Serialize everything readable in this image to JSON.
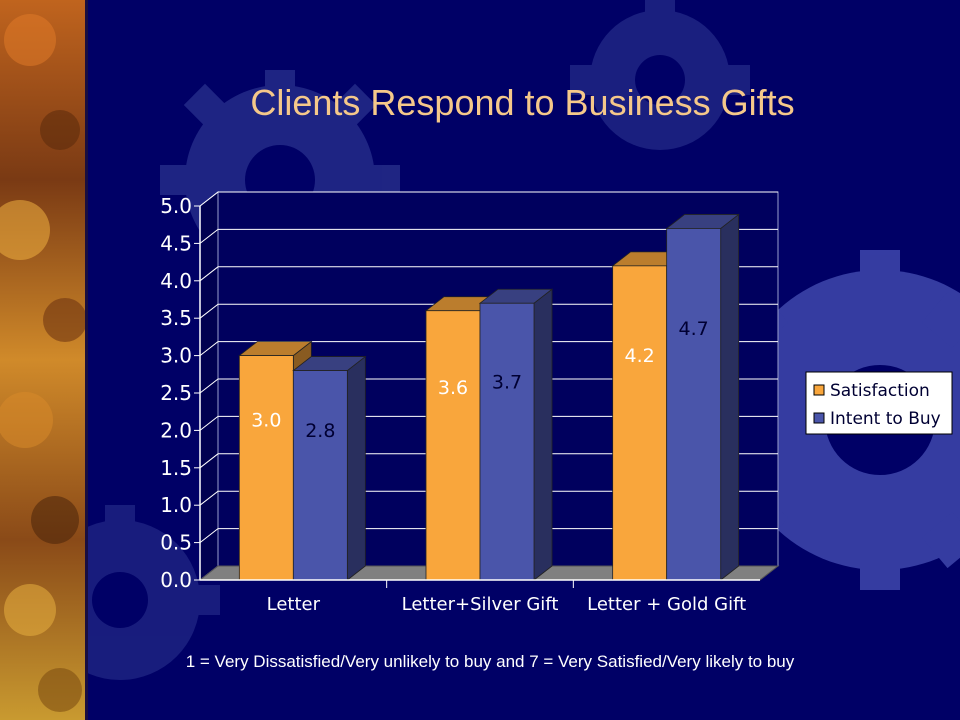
{
  "slide": {
    "title": "Clients Respond to Business Gifts",
    "footnote": "1 = Very Dissatisfied/Very unlikely to buy and 7 = Very Satisfied/Very likely to buy"
  },
  "chart_data": {
    "type": "bar",
    "title": "",
    "xlabel": "",
    "ylabel": "",
    "categories": [
      "Letter",
      "Letter+Silver Gift",
      "Letter + Gold Gift"
    ],
    "series": [
      {
        "name": "Satisfaction",
        "values": [
          3.0,
          3.6,
          4.2
        ],
        "labels": [
          "3.0",
          "3.6",
          "4.2"
        ],
        "color": "#f9a63c"
      },
      {
        "name": "Intent to Buy",
        "values": [
          2.8,
          3.7,
          4.7
        ],
        "labels": [
          "2.8",
          "3.7",
          "4.7"
        ],
        "color": "#4a55aa"
      }
    ],
    "ylim": [
      0,
      5
    ],
    "yticks": [
      "0.0",
      "0.5",
      "1.0",
      "1.5",
      "2.0",
      "2.5",
      "3.0",
      "3.5",
      "4.0",
      "4.5",
      "5.0"
    ],
    "grid": true,
    "legend_position": "right",
    "style": "3d-clustered-column"
  },
  "colors": {
    "background": "#000066",
    "title": "#f5c88a",
    "gear": "#3b43a8",
    "plot_back_wall": "#00005e",
    "floor": "#808080"
  }
}
